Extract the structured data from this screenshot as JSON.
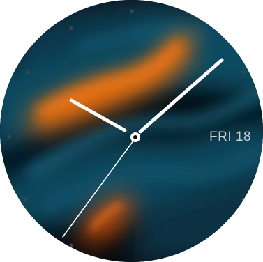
{
  "watchface": {
    "date_text": "FRI 18",
    "time": {
      "hour": 10,
      "minute": 10,
      "second": 36
    },
    "colors": {
      "background": "#050a10",
      "teal": "#0f5a73",
      "orange": "#ff6a00",
      "hands": "#ffffff",
      "date": "#c9d0d4",
      "tick_dots": "#3b4650"
    },
    "icons": {
      "center_cap": "center-pivot-icon"
    }
  }
}
